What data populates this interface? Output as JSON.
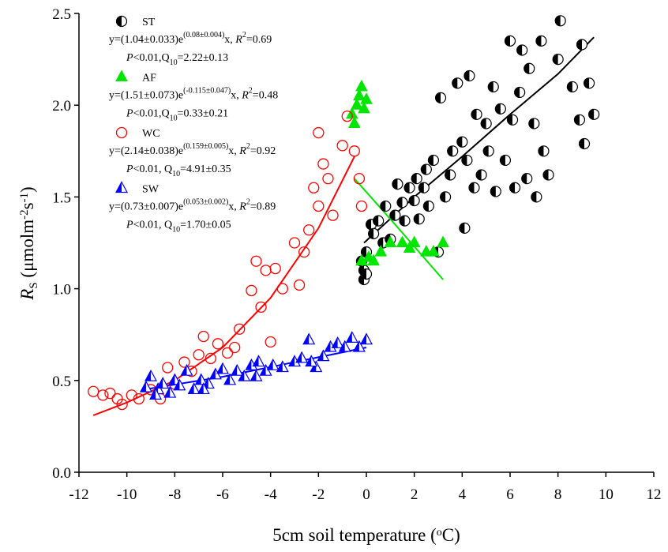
{
  "chart_data": {
    "type": "scatter",
    "x_label": [
      "5cm soil temperature (",
      "o",
      "C)"
    ],
    "y_label": [
      "R",
      "S",
      " (μmolm",
      "-2",
      "s",
      "-1",
      ")"
    ],
    "xlim": [
      -12,
      12
    ],
    "xticks": [
      -12,
      -10,
      -8,
      -6,
      -4,
      -2,
      0,
      2,
      4,
      6,
      8,
      10,
      12
    ],
    "ylim": [
      0,
      2.5
    ],
    "yticks": [
      {
        "value": 0,
        "label": "0.0"
      },
      0.5,
      {
        "value": 1,
        "label": "1.0"
      },
      1.5,
      {
        "value": 2,
        "label": "2.0"
      },
      2.5
    ],
    "series": [
      {
        "name": "ST",
        "color": "#000000",
        "marker": "half-circle",
        "equation": [
          "y=(1.04±0.033)e",
          "(0.08±0.004)",
          "x, ",
          "R",
          "2",
          "=0.69"
        ],
        "stats": [
          "P",
          "<0.01,Q",
          "10",
          "=2.22±0.13"
        ],
        "x": [
          -0.1,
          -0.1,
          0,
          -0.2,
          0,
          0.2,
          0.3,
          0.5,
          0.7,
          0.8,
          1.0,
          1.2,
          1.3,
          1.5,
          1.6,
          1.8,
          2.0,
          2.1,
          2.2,
          2.4,
          2.5,
          2.6,
          2.8,
          3.0,
          3.1,
          3.3,
          3.5,
          3.6,
          3.8,
          4.0,
          4.1,
          4.2,
          4.3,
          4.5,
          4.6,
          4.8,
          5.0,
          5.1,
          5.3,
          5.4,
          5.6,
          5.8,
          6.0,
          6.1,
          6.2,
          6.4,
          6.5,
          6.7,
          6.8,
          7.0,
          7.1,
          7.3,
          7.4,
          7.6,
          8.0,
          8.1,
          8.6,
          8.9,
          9.0,
          9.1,
          9.3,
          9.5
        ],
        "values": [
          1.05,
          1.1,
          1.2,
          1.15,
          1.08,
          1.35,
          1.3,
          1.37,
          1.25,
          1.45,
          1.27,
          1.4,
          1.57,
          1.47,
          1.37,
          1.55,
          1.48,
          1.6,
          1.38,
          1.55,
          1.65,
          1.45,
          1.7,
          1.2,
          2.04,
          1.5,
          1.62,
          1.75,
          2.12,
          1.8,
          1.33,
          1.7,
          2.16,
          1.55,
          1.95,
          1.62,
          1.9,
          1.75,
          2.1,
          1.53,
          1.98,
          1.7,
          2.35,
          1.92,
          1.55,
          2.07,
          2.3,
          1.6,
          2.2,
          1.9,
          1.5,
          2.35,
          1.75,
          1.62,
          2.25,
          2.46,
          2.1,
          1.92,
          2.33,
          1.79,
          2.12,
          1.95
        ]
      },
      {
        "name": "AF",
        "color": "#00e600",
        "marker": "triangle",
        "equation": [
          "y=(1.51±0.073)e",
          "(-0.115±0.047)",
          "x, ",
          "R",
          "2",
          "=0.48"
        ],
        "stats": [
          "P",
          "<0.01,Q",
          "10",
          "=0.33±0.21"
        ],
        "x": [
          -0.6,
          -0.5,
          -0.4,
          -0.3,
          -0.2,
          -0.1,
          0,
          -0.2,
          0.1,
          0.3,
          0.6,
          1.0,
          1.5,
          1.8,
          2.0,
          2.5,
          2.8,
          3.2
        ],
        "values": [
          1.95,
          1.9,
          2.0,
          2.05,
          2.1,
          1.98,
          2.03,
          1.15,
          1.17,
          1.15,
          1.2,
          1.25,
          1.25,
          1.22,
          1.25,
          1.2,
          1.2,
          1.25
        ]
      },
      {
        "name": "WC",
        "color": "#ff0000",
        "marker": "open-circle",
        "equation": [
          "y=(2.14±0.038)e",
          "(0.159±0.005)",
          "x, ",
          "R",
          "2",
          "=0.92"
        ],
        "stats": [
          "P",
          "<0.01, Q",
          "10",
          "=4.91±0.35"
        ],
        "x": [
          -11.4,
          -11.0,
          -10.7,
          -10.4,
          -10.2,
          -9.8,
          -9.5,
          -9.0,
          -8.6,
          -8.3,
          -8.0,
          -7.6,
          -7.3,
          -7.0,
          -6.8,
          -6.5,
          -6.2,
          -5.8,
          -5.5,
          -5.3,
          -4.8,
          -4.6,
          -4.4,
          -4.2,
          -4.0,
          -3.8,
          -3.5,
          -3.0,
          -2.8,
          -2.6,
          -2.4,
          -2.2,
          -2.0,
          -1.8,
          -1.6,
          -1.4,
          -1.0,
          -0.8,
          -0.5,
          -0.3,
          -0.2,
          -2.0
        ],
        "values": [
          0.44,
          0.42,
          0.43,
          0.4,
          0.37,
          0.42,
          0.4,
          0.45,
          0.4,
          0.57,
          0.48,
          0.6,
          0.55,
          0.64,
          0.74,
          0.62,
          0.7,
          0.65,
          0.68,
          0.78,
          0.99,
          1.15,
          0.9,
          1.1,
          0.71,
          1.11,
          1.0,
          1.25,
          1.02,
          1.2,
          1.32,
          1.55,
          1.45,
          1.68,
          1.6,
          1.4,
          1.78,
          1.94,
          1.75,
          1.6,
          1.45,
          1.85
        ]
      },
      {
        "name": "SW",
        "color": "#0000ff",
        "marker": "half-triangle",
        "equation": [
          "y=(0.73±0.007)e",
          "(0.053±0.002)",
          "x, ",
          "R",
          "2",
          "=0.89"
        ],
        "stats": [
          "P",
          "<0.01, Q",
          "10",
          "=1.70±0.05"
        ],
        "x": [
          -9.2,
          -9.0,
          -8.7,
          -8.5,
          -8.2,
          -8.0,
          -7.8,
          -7.5,
          -7.2,
          -6.9,
          -6.6,
          -6.3,
          -6.0,
          -5.7,
          -5.4,
          -5.1,
          -4.8,
          -4.5,
          -4.2,
          -3.9,
          -3.5,
          -3.0,
          -2.7,
          -2.4,
          -2.1,
          -1.8,
          -1.5,
          -1.2,
          -0.9,
          -0.6,
          -0.3,
          0,
          -2.3,
          -4.6,
          -6.8,
          -8.8
        ],
        "values": [
          0.46,
          0.52,
          0.45,
          0.48,
          0.43,
          0.5,
          0.47,
          0.55,
          0.45,
          0.5,
          0.48,
          0.53,
          0.56,
          0.5,
          0.55,
          0.52,
          0.58,
          0.6,
          0.55,
          0.58,
          0.57,
          0.6,
          0.62,
          0.72,
          0.57,
          0.63,
          0.68,
          0.7,
          0.68,
          0.73,
          0.68,
          0.72,
          0.6,
          0.52,
          0.45,
          0.42
        ]
      }
    ],
    "fits": [
      {
        "color": "#000000",
        "x": [
          -0.1,
          2,
          4,
          6,
          8,
          9.5
        ],
        "values": [
          1.25,
          1.5,
          1.72,
          1.95,
          2.17,
          2.37
        ]
      },
      {
        "color": "#00e600",
        "x": [
          -0.5,
          1,
          2,
          3.2
        ],
        "values": [
          1.6,
          1.38,
          1.23,
          1.05
        ]
      },
      {
        "color": "#ff0000",
        "x": [
          -11.4,
          -10,
          -8,
          -6,
          -4,
          -2,
          -0.5
        ],
        "values": [
          0.31,
          0.38,
          0.5,
          0.68,
          0.95,
          1.33,
          1.72
        ]
      },
      {
        "color": "#0000ff",
        "x": [
          -9.3,
          -6,
          -3,
          0
        ],
        "values": [
          0.45,
          0.52,
          0.6,
          0.68
        ]
      }
    ]
  }
}
